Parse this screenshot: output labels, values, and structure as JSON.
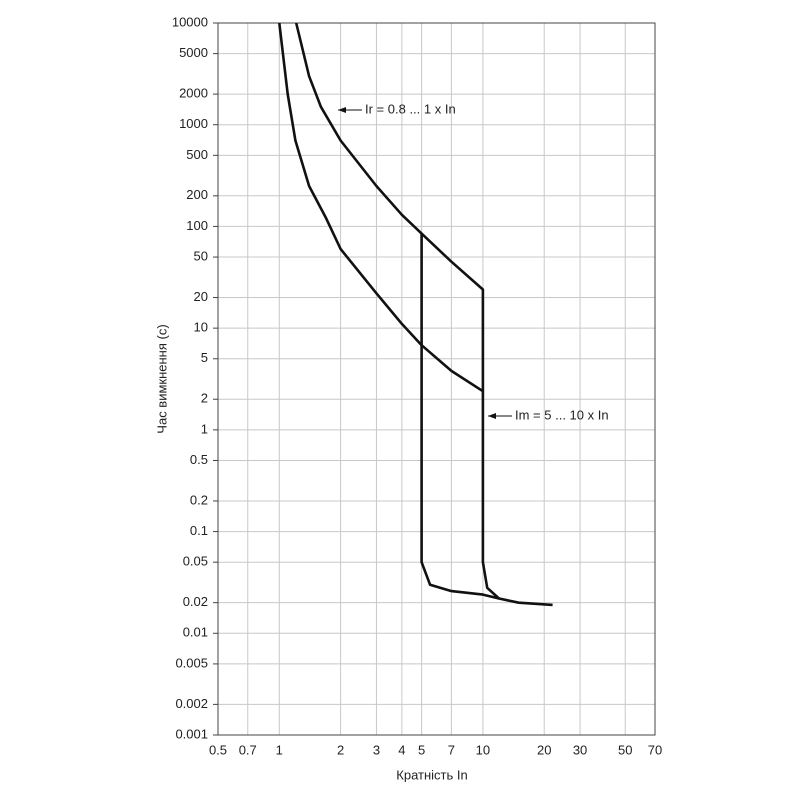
{
  "chart_data": {
    "type": "line",
    "x_label": "Кратність In",
    "y_label": "Час вимкнення (с)",
    "annotations": [
      "Ir = 0.8 ... 1 x In",
      "Im = 5 ... 10 x In"
    ],
    "xscale": "log",
    "yscale": "log",
    "grid": true,
    "xlim": [
      0.5,
      70
    ],
    "ylim": [
      0.001,
      10000
    ],
    "xticks": [
      0.5,
      0.7,
      1,
      2,
      3,
      4,
      5,
      7,
      10,
      20,
      30,
      50,
      70
    ],
    "yticks": [
      10000,
      5000,
      2000,
      1000,
      500,
      200,
      100,
      50,
      20,
      10,
      5,
      2,
      1,
      0.5,
      0.2,
      0.1,
      0.05,
      0.02,
      0.01,
      0.005,
      0.002,
      0.001
    ],
    "series": [
      {
        "color": "#111111",
        "x": [
          1.21,
          1.4,
          1.6,
          2,
          3,
          4,
          5,
          7,
          10,
          10,
          10.5,
          12,
          15,
          22
        ],
        "values": [
          10000,
          3000,
          1500,
          700,
          250,
          130,
          85,
          45,
          24,
          0.05,
          0.028,
          0.022,
          0.02,
          0.019
        ]
      },
      {
        "color": "#111111",
        "x": [
          1,
          1.1,
          1.2,
          1.4,
          1.7,
          2,
          3,
          4,
          5,
          7,
          10
        ],
        "values": [
          10000,
          2000,
          700,
          250,
          120,
          60,
          22,
          11,
          6.8,
          3.8,
          2.4
        ]
      },
      {
        "color": "#111111",
        "x": [
          5,
          5,
          5.5,
          7,
          10,
          12
        ],
        "values": [
          85,
          0.05,
          0.03,
          0.026,
          0.024,
          0.022
        ]
      }
    ]
  }
}
